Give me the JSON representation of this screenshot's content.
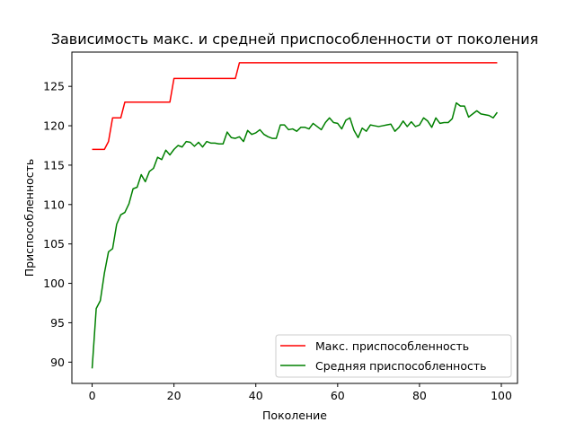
{
  "chart_data": {
    "type": "line",
    "title": "Зависимость макс. и средней приспособленности от поколения",
    "xlabel": "Поколение",
    "ylabel": "Приспособленность",
    "xlim": [
      -4.95,
      103.95
    ],
    "ylim": [
      87.3,
      129.35
    ],
    "xticks": [
      0,
      20,
      40,
      60,
      80,
      100
    ],
    "yticks": [
      90,
      95,
      100,
      105,
      110,
      115,
      120,
      125
    ],
    "grid": false,
    "legend_position": "lower-right",
    "series": [
      {
        "name": "Макс. приспособленность",
        "color": "#ff0000",
        "x": [
          0,
          1,
          2,
          3,
          4,
          5,
          6,
          7,
          8,
          9,
          10,
          11,
          12,
          13,
          14,
          15,
          16,
          17,
          18,
          19,
          20,
          21,
          22,
          23,
          24,
          25,
          26,
          27,
          28,
          29,
          30,
          31,
          32,
          33,
          34,
          35,
          36,
          37,
          38,
          39,
          40,
          41,
          42,
          43,
          44,
          45,
          46,
          47,
          48,
          49,
          50,
          51,
          52,
          53,
          54,
          55,
          56,
          57,
          58,
          59,
          60,
          61,
          62,
          63,
          64,
          65,
          66,
          67,
          68,
          69,
          70,
          71,
          72,
          73,
          74,
          75,
          76,
          77,
          78,
          79,
          80,
          81,
          82,
          83,
          84,
          85,
          86,
          87,
          88,
          89,
          90,
          91,
          92,
          93,
          94,
          95,
          96,
          97,
          98,
          99
        ],
        "y": [
          117,
          117,
          117,
          117,
          118,
          121,
          121,
          121,
          123,
          123,
          123,
          123,
          123,
          123,
          123,
          123,
          123,
          123,
          123,
          123,
          126,
          126,
          126,
          126,
          126,
          126,
          126,
          126,
          126,
          126,
          126,
          126,
          126,
          126,
          126,
          126,
          128,
          128,
          128,
          128,
          128,
          128,
          128,
          128,
          128,
          128,
          128,
          128,
          128,
          128,
          128,
          128,
          128,
          128,
          128,
          128,
          128,
          128,
          128,
          128,
          128,
          128,
          128,
          128,
          128,
          128,
          128,
          128,
          128,
          128,
          128,
          128,
          128,
          128,
          128,
          128,
          128,
          128,
          128,
          128,
          128,
          128,
          128,
          128,
          128,
          128,
          128,
          128,
          128,
          128,
          128,
          128,
          128,
          128,
          128,
          128,
          128,
          128,
          128,
          128
        ]
      },
      {
        "name": "Средняя приспособленность",
        "color": "#008000",
        "x": [
          0,
          1,
          2,
          3,
          4,
          5,
          6,
          7,
          8,
          9,
          10,
          11,
          12,
          13,
          14,
          15,
          16,
          17,
          18,
          19,
          20,
          21,
          22,
          23,
          24,
          25,
          26,
          27,
          28,
          29,
          30,
          31,
          32,
          33,
          34,
          35,
          36,
          37,
          38,
          39,
          40,
          41,
          42,
          43,
          44,
          45,
          46,
          47,
          48,
          49,
          50,
          51,
          52,
          53,
          54,
          55,
          56,
          57,
          58,
          59,
          60,
          61,
          62,
          63,
          64,
          65,
          66,
          67,
          68,
          69,
          70,
          71,
          72,
          73,
          74,
          75,
          76,
          77,
          78,
          79,
          80,
          81,
          82,
          83,
          84,
          85,
          86,
          87,
          88,
          89,
          90,
          91,
          92,
          93,
          94,
          95,
          96,
          97,
          98,
          99
        ],
        "y": [
          89.2,
          96.8,
          97.8,
          101.3,
          104.0,
          104.4,
          107.5,
          108.7,
          109.0,
          110.1,
          112.0,
          112.2,
          113.8,
          112.9,
          114.2,
          114.6,
          116.0,
          115.7,
          116.9,
          116.3,
          117.0,
          117.5,
          117.3,
          118.0,
          117.9,
          117.4,
          117.9,
          117.3,
          118.0,
          117.8,
          117.8,
          117.7,
          117.7,
          119.2,
          118.5,
          118.4,
          118.6,
          118.0,
          119.4,
          118.9,
          119.1,
          119.5,
          118.9,
          118.6,
          118.4,
          118.4,
          120.1,
          120.1,
          119.5,
          119.6,
          119.3,
          119.8,
          119.8,
          119.6,
          120.3,
          119.9,
          119.5,
          120.4,
          121.0,
          120.4,
          120.3,
          119.6,
          120.7,
          121.0,
          119.4,
          118.5,
          119.7,
          119.3,
          120.1,
          120.0,
          119.9,
          120.0,
          120.1,
          120.2,
          119.3,
          119.8,
          120.6,
          119.9,
          120.5,
          119.9,
          120.1,
          121.0,
          120.6,
          119.8,
          121.0,
          120.3,
          120.4,
          120.4,
          120.9,
          122.9,
          122.5,
          122.5,
          121.1,
          121.5,
          121.9,
          121.5,
          121.4,
          121.3,
          121.0,
          121.7
        ]
      }
    ]
  }
}
